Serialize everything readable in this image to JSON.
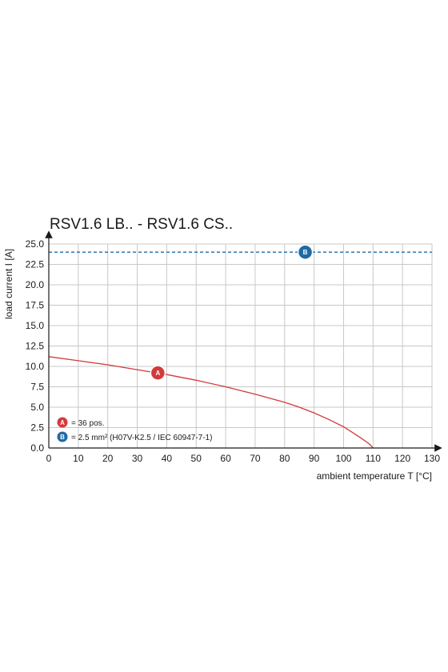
{
  "chart_data": {
    "type": "line",
    "title": "RSV1.6 LB.. - RSV1.6 CS..",
    "xlabel": "ambient temperature T [°C]",
    "ylabel": "load current I [A]",
    "xlim": [
      0,
      130
    ],
    "ylim": [
      0,
      25
    ],
    "x_ticks": [
      0,
      10,
      20,
      30,
      40,
      50,
      60,
      70,
      80,
      90,
      100,
      110,
      120,
      130
    ],
    "y_ticks": [
      "0.0",
      "2.5",
      "5.0",
      "7.5",
      "10.0",
      "12.5",
      "15.0",
      "17.5",
      "20.0",
      "22.5",
      "25.0"
    ],
    "grid": true,
    "series": [
      {
        "name": "A",
        "color": "#d33a3a",
        "style": "solid",
        "marker_at": [
          37,
          9.2
        ],
        "x": [
          0,
          10,
          20,
          30,
          40,
          50,
          60,
          70,
          80,
          85,
          90,
          95,
          100,
          103,
          106,
          108,
          109,
          110
        ],
        "y": [
          11.2,
          10.7,
          10.2,
          9.6,
          9.0,
          8.3,
          7.5,
          6.6,
          5.6,
          5.0,
          4.3,
          3.5,
          2.6,
          1.9,
          1.2,
          0.7,
          0.4,
          0.0
        ]
      },
      {
        "name": "B",
        "color": "#1f6aa5",
        "style": "dashed",
        "marker_at": [
          87,
          24
        ],
        "x": [
          0,
          130
        ],
        "y": [
          24,
          24
        ]
      }
    ],
    "legend": {
      "placement": "bottom-left",
      "entries": [
        {
          "marker": "A",
          "text": "= 36 pos.",
          "color": "#d33a3a"
        },
        {
          "marker": "B",
          "text": "= 2.5 mm² (H07V-K2.5 / IEC 60947-7-1)",
          "color": "#1f6aa5"
        }
      ]
    }
  }
}
